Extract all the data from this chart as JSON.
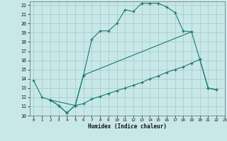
{
  "xlabel": "Humidex (Indice chaleur)",
  "xlim": [
    -0.5,
    23
  ],
  "ylim": [
    10,
    22.4
  ],
  "yticks": [
    10,
    11,
    12,
    13,
    14,
    15,
    16,
    17,
    18,
    19,
    20,
    21,
    22
  ],
  "xticks": [
    0,
    1,
    2,
    3,
    4,
    5,
    6,
    7,
    8,
    9,
    10,
    11,
    12,
    13,
    14,
    15,
    16,
    17,
    18,
    19,
    20,
    21,
    22,
    23
  ],
  "bg_color": "#c8e8e8",
  "line_color": "#1a7a6e",
  "grid_color": "#9bbfbf",
  "series": [
    {
      "x": [
        0,
        1,
        2,
        3,
        4,
        5,
        6,
        7,
        8,
        9,
        10,
        11,
        12,
        13,
        14,
        15,
        16,
        17,
        18,
        19
      ],
      "y": [
        13.8,
        12.0,
        11.7,
        11.1,
        10.3,
        11.1,
        14.4,
        18.3,
        19.2,
        19.2,
        20.0,
        21.5,
        21.3,
        22.2,
        22.2,
        22.2,
        21.8,
        21.2,
        19.2,
        19.1
      ]
    },
    {
      "x": [
        2,
        3,
        4,
        5,
        6,
        7,
        8,
        9,
        10,
        11,
        12,
        13,
        14,
        15,
        16,
        17,
        18,
        19,
        20,
        21,
        22
      ],
      "y": [
        11.7,
        11.1,
        10.3,
        11.1,
        11.3,
        11.8,
        12.1,
        12.4,
        12.7,
        13.0,
        13.3,
        13.6,
        14.0,
        14.3,
        14.7,
        15.0,
        15.3,
        15.7,
        16.1,
        13.0,
        12.8
      ]
    },
    {
      "x": [
        2,
        5,
        6,
        19,
        20,
        21,
        22
      ],
      "y": [
        11.7,
        11.1,
        14.4,
        19.1,
        16.1,
        13.0,
        12.8
      ]
    }
  ]
}
